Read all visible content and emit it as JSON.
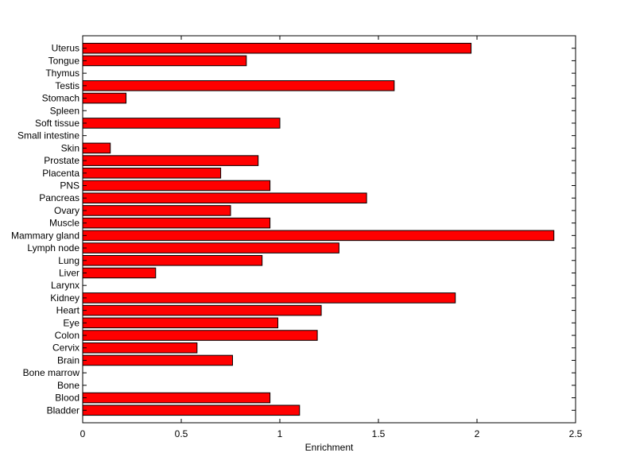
{
  "chart_data": {
    "type": "bar",
    "orientation": "horizontal",
    "title": "",
    "xlabel": "Enrichment",
    "ylabel": "",
    "xlim": [
      0,
      2.5
    ],
    "xticks": [
      0,
      0.5,
      1,
      1.5,
      2,
      2.5
    ],
    "xtick_labels": [
      "0",
      "0.5",
      "1",
      "1.5",
      "2",
      "2.5"
    ],
    "grid": false,
    "legend": "none",
    "bar_color": "#ff0000",
    "categories": [
      "Bladder",
      "Blood",
      "Bone",
      "Bone marrow",
      "Brain",
      "Cervix",
      "Colon",
      "Eye",
      "Heart",
      "Kidney",
      "Larynx",
      "Liver",
      "Lung",
      "Lymph node",
      "Mammary gland",
      "Muscle",
      "Ovary",
      "Pancreas",
      "PNS",
      "Placenta",
      "Prostate",
      "Skin",
      "Small intestine",
      "Soft tissue",
      "Spleen",
      "Stomach",
      "Testis",
      "Thymus",
      "Tongue",
      "Uterus"
    ],
    "values": [
      1.1,
      0.95,
      0,
      0,
      0.76,
      0.58,
      1.19,
      0.99,
      1.21,
      1.89,
      0,
      0.37,
      0.91,
      1.3,
      2.39,
      0.95,
      0.75,
      1.44,
      0.95,
      0.7,
      0.89,
      0.14,
      0,
      1.0,
      0,
      0.22,
      1.58,
      0,
      0.83,
      1.97
    ]
  }
}
